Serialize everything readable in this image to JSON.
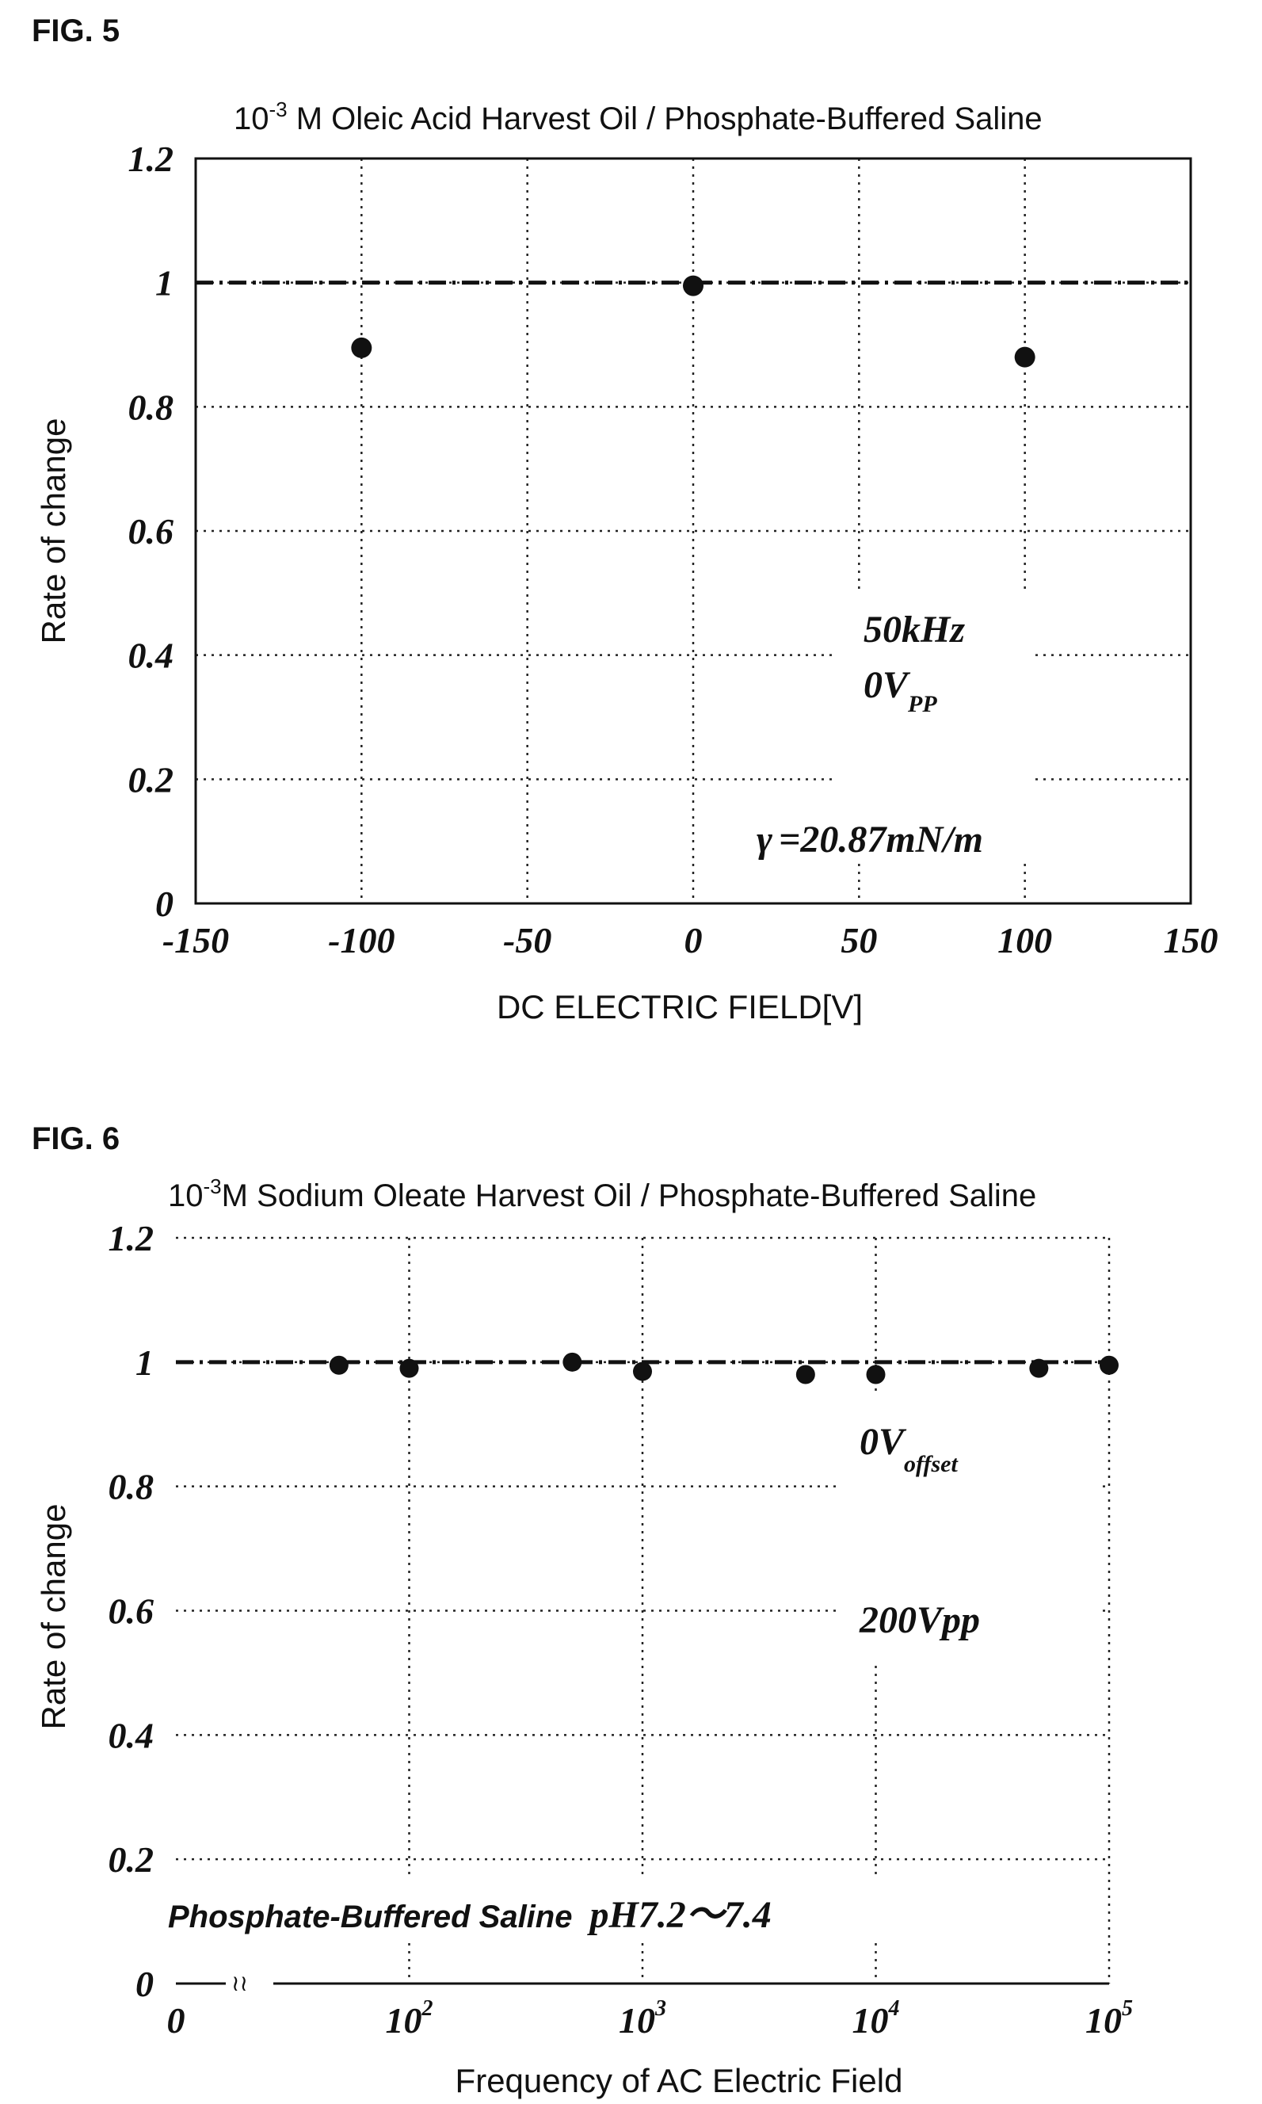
{
  "chart_data": [
    {
      "type": "scatter",
      "figure_label": "FIG. 5",
      "title_prefix": "10",
      "title_exp": "-3",
      "title_rest": " M Oleic Acid Harvest Oil / Phosphate-Buffered Saline",
      "xlabel": "DC ELECTRIC FIELD[V]",
      "ylabel": "Rate of change",
      "xlim": [
        -150,
        150
      ],
      "ylim": [
        0,
        1.2
      ],
      "xticks": [
        -150,
        -100,
        -50,
        0,
        50,
        100,
        150
      ],
      "xtick_labels": [
        "-150",
        "-100",
        "-50",
        "0",
        "50",
        "100",
        "150"
      ],
      "yticks": [
        0,
        0.2,
        0.4,
        0.6,
        0.8,
        1,
        1.2
      ],
      "ytick_labels": [
        "0",
        "0.2",
        "0.4",
        "0.6",
        "0.8",
        "1",
        "1.2"
      ],
      "grid": true,
      "reference_line_y": 1,
      "series": [
        {
          "x": [
            -100,
            0,
            100
          ],
          "y": [
            0.895,
            0.995,
            0.88
          ]
        }
      ],
      "annotations": {
        "freq": "50kHz",
        "volt": "0V",
        "volt_sub": "PP",
        "gamma_symbol": "γ",
        "gamma_value": "=20.87mN/m"
      }
    },
    {
      "type": "scatter",
      "figure_label": "FIG. 6",
      "title_prefix": "10",
      "title_exp": "-3",
      "title_rest": "M Sodium Oleate Harvest Oil / Phosphate-Buffered Saline",
      "xlabel": "Frequency of AC Electric Field",
      "ylabel": "Rate of change",
      "x_scale": "log",
      "xlim": [
        10,
        100000
      ],
      "ylim": [
        0,
        1.2
      ],
      "xticks": [
        10,
        100,
        1000,
        10000,
        100000
      ],
      "xtick_labels": [
        {
          "base": "0",
          "exp": ""
        },
        {
          "base": "10",
          "exp": "2"
        },
        {
          "base": "10",
          "exp": "3"
        },
        {
          "base": "10",
          "exp": "4"
        },
        {
          "base": "10",
          "exp": "5"
        }
      ],
      "yticks": [
        0,
        0.2,
        0.4,
        0.6,
        0.8,
        1,
        1.2
      ],
      "ytick_labels": [
        "0",
        "0.2",
        "0.4",
        "0.6",
        "0.8",
        "1",
        "1.2"
      ],
      "axis_break": "≀≀",
      "grid": true,
      "reference_line_y": 1,
      "series": [
        {
          "x": [
            50,
            100,
            500,
            1000,
            5000,
            10000,
            50000,
            100000
          ],
          "y": [
            0.995,
            0.99,
            1.0,
            0.985,
            0.98,
            0.98,
            0.99,
            0.995
          ]
        }
      ],
      "annotations": {
        "offset": "0V",
        "offset_sub": "offset",
        "vpp": "200Vpp",
        "saline": "Phosphate-Buffered Saline",
        "ph": "pH7.2～7.4"
      }
    }
  ]
}
